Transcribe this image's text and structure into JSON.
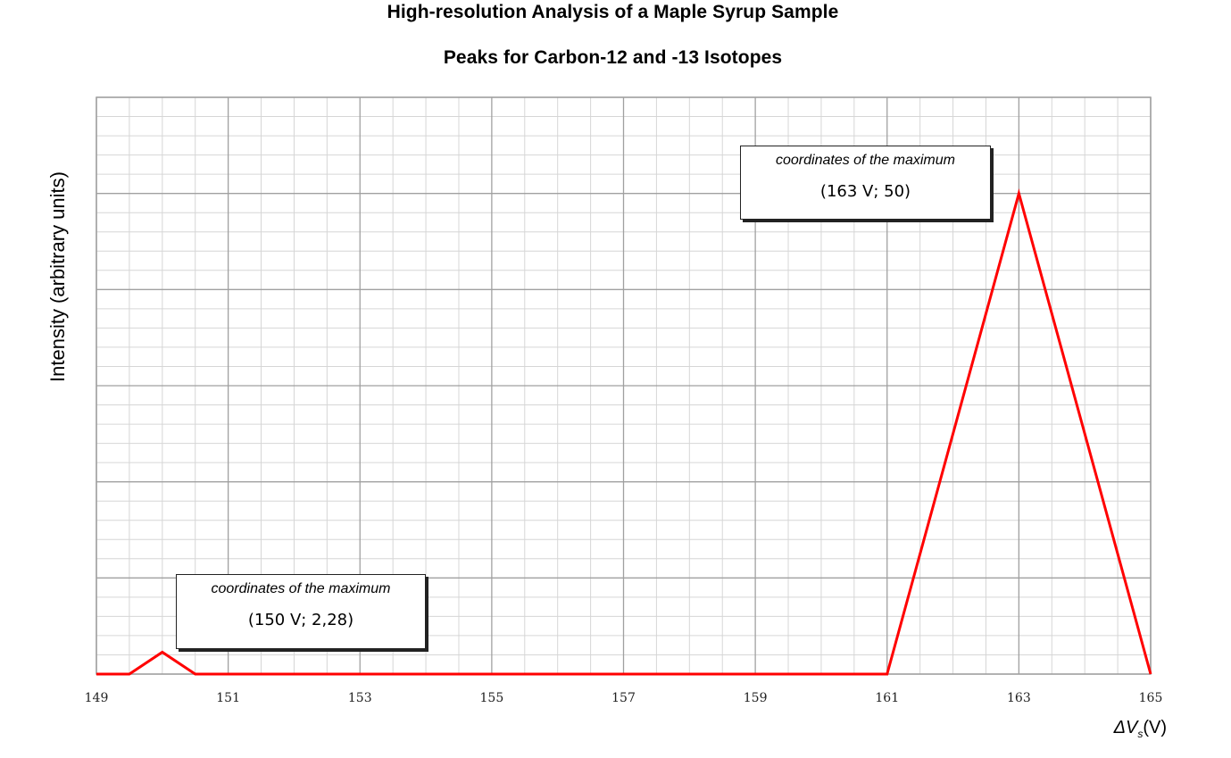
{
  "chart_data": {
    "type": "line",
    "title": "High-resolution Analysis of a Maple Syrup Sample",
    "subtitle": "Peaks for Carbon-12 and -13 Isotopes",
    "ylabel": "Intensity (arbitrary units)",
    "xlabel_symbol": "ΔV",
    "xlabel_subscript": "s",
    "xlabel_unit": "(V)",
    "xlim": [
      149,
      165
    ],
    "ylim": [
      0,
      60
    ],
    "xticks": [
      149,
      151,
      153,
      155,
      157,
      159,
      161,
      163,
      165
    ],
    "grid": true,
    "series_color": "#ff0000",
    "series": [
      {
        "x": [
          149,
          149.5,
          150,
          150.5,
          161,
          163,
          165
        ],
        "y": [
          0,
          0,
          2.28,
          0,
          0,
          50,
          0
        ]
      }
    ],
    "annotations": [
      {
        "title": "coordinates of the maximum",
        "value": "(150 V; 2,28)",
        "x": 150,
        "y": 2.28
      },
      {
        "title": "coordinates of the maximum",
        "value": "(163 V; 50)",
        "x": 163,
        "y": 50
      }
    ]
  }
}
